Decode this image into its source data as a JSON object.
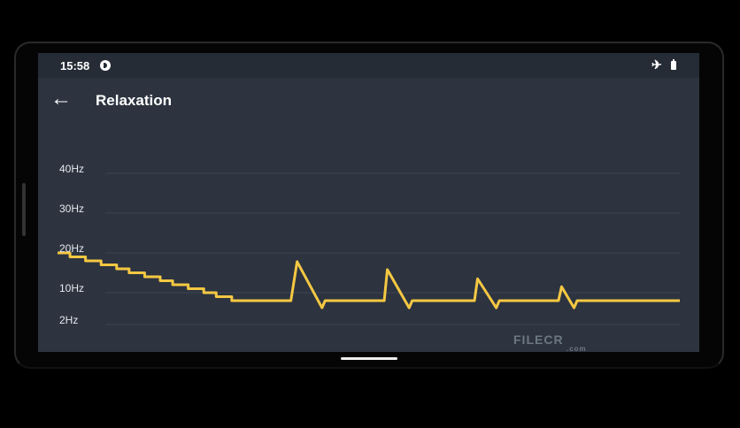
{
  "status_bar": {
    "time": "15:58",
    "icons": [
      "do-not-disturb-icon",
      "airplane-mode-icon",
      "battery-icon"
    ]
  },
  "app_bar": {
    "title": "Relaxation",
    "back_icon": "arrow-left-icon"
  },
  "watermark": {
    "name": "FILECR",
    "suffix": ".com"
  },
  "chart_data": {
    "type": "line",
    "title": "",
    "xlabel": "",
    "ylabel": "",
    "y_ticks": [
      {
        "label": "40Hz",
        "value": 40
      },
      {
        "label": "30Hz",
        "value": 30
      },
      {
        "label": "20Hz",
        "value": 20
      },
      {
        "label": "10Hz",
        "value": 10
      },
      {
        "label": "2Hz",
        "value": 2
      }
    ],
    "ylim": [
      0,
      44
    ],
    "grid": true,
    "line_color": "#f5c842",
    "series": [
      {
        "points": [
          [
            0,
            20
          ],
          [
            2,
            20
          ],
          [
            2,
            19
          ],
          [
            4.5,
            19
          ],
          [
            4.5,
            18
          ],
          [
            7,
            18
          ],
          [
            7,
            17
          ],
          [
            9.5,
            17
          ],
          [
            9.5,
            16
          ],
          [
            11.5,
            16
          ],
          [
            11.5,
            15
          ],
          [
            14,
            15
          ],
          [
            14,
            14
          ],
          [
            16.5,
            14
          ],
          [
            16.5,
            13
          ],
          [
            18.5,
            13
          ],
          [
            18.5,
            12
          ],
          [
            21,
            12
          ],
          [
            21,
            11
          ],
          [
            23.5,
            11
          ],
          [
            23.5,
            10
          ],
          [
            25.5,
            10
          ],
          [
            25.5,
            9
          ],
          [
            28,
            9
          ],
          [
            28,
            8
          ],
          [
            37.5,
            8
          ],
          [
            38.5,
            17.8
          ],
          [
            42.5,
            6.2
          ],
          [
            43,
            8
          ],
          [
            52.5,
            8
          ],
          [
            53,
            15.8
          ],
          [
            56.5,
            6.2
          ],
          [
            57,
            8
          ],
          [
            67,
            8
          ],
          [
            67.5,
            13.5
          ],
          [
            70.5,
            6.2
          ],
          [
            71,
            8
          ],
          [
            80.5,
            8
          ],
          [
            81,
            11.5
          ],
          [
            83,
            6.2
          ],
          [
            83.5,
            8
          ],
          [
            100,
            8
          ]
        ]
      }
    ]
  }
}
